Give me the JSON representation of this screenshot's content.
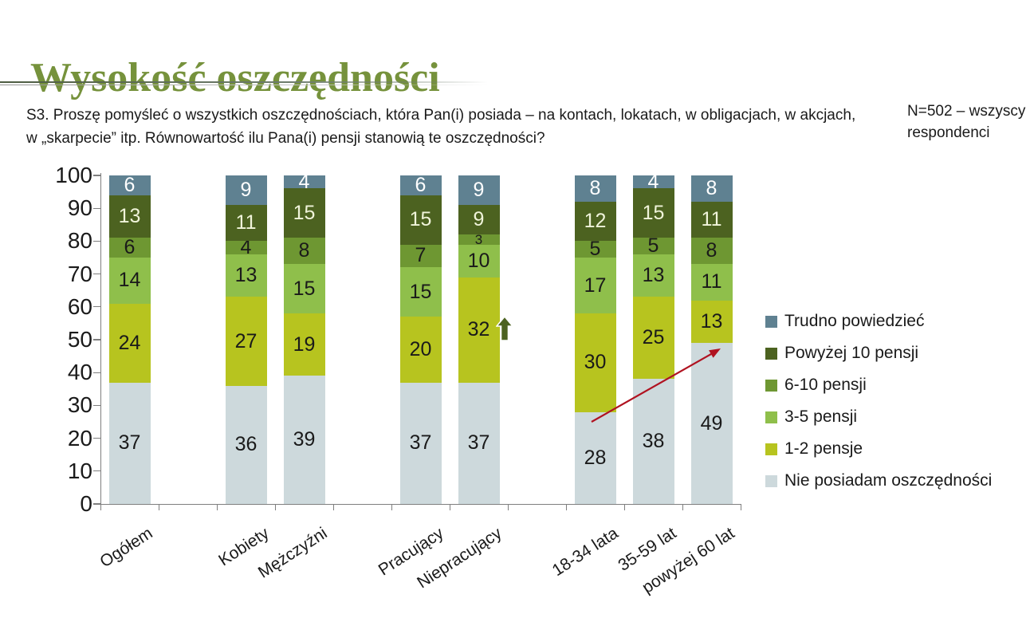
{
  "slide": {
    "title": "Wysokość oszczędności",
    "question_line1": "S3. Proszę pomyśleć o wszystkich oszczędnościach, która Pan(i) posiada – na kontach, lokatach, w obligacjach, w akcjach,",
    "question_line2": "w „skarpecie” itp. Równowartość ilu Pana(i) pensji stanowią te oszczędności?",
    "sample_note": "N=502 – wszyscy respondenci"
  },
  "chart_data": {
    "type": "bar",
    "stacked": true,
    "unit": "percent",
    "categories": [
      "Ogółem",
      "Kobiety",
      "Mężczyźni",
      "Pracujący",
      "Niepracujący",
      "18-34 lata",
      "35-59 lat",
      "powyżej 60 lat"
    ],
    "series": [
      {
        "name": "Nie posiadam oszczędności",
        "color": "#cdd9dc",
        "label_color": "#1a1a1a",
        "values": [
          37,
          36,
          39,
          37,
          37,
          28,
          38,
          49
        ]
      },
      {
        "name": "1-2 pensje",
        "color": "#b7c41f",
        "label_color": "#1a1a1a",
        "values": [
          24,
          27,
          19,
          20,
          32,
          30,
          25,
          13
        ]
      },
      {
        "name": "3-5 pensji",
        "color": "#8fbf4b",
        "label_color": "#1a1a1a",
        "values": [
          14,
          13,
          15,
          15,
          10,
          17,
          13,
          11
        ]
      },
      {
        "name": "6-10 pensji",
        "color": "#6e9732",
        "label_color": "#1a1a1a",
        "values": [
          6,
          4,
          8,
          7,
          3,
          5,
          5,
          8
        ]
      },
      {
        "name": "Powyżej 10 pensji",
        "color": "#4c6220",
        "label_color": "#f0f4da",
        "values": [
          13,
          11,
          15,
          15,
          9,
          12,
          15,
          11
        ]
      },
      {
        "name": "Trudno powiedzieć",
        "color": "#5f8191",
        "label_color": "#ffffff",
        "values": [
          6,
          9,
          4,
          6,
          9,
          8,
          4,
          8
        ]
      }
    ],
    "ylim": [
      0,
      100
    ],
    "yticks": [
      0,
      10,
      20,
      30,
      40,
      50,
      60,
      70,
      80,
      90,
      100
    ],
    "grid": false,
    "legend_position": "right",
    "annotations": [
      {
        "type": "block-up-arrow",
        "color": "#4c6220",
        "attached_to": "Niepracujący, segment 1-2 pensje, wartość 32"
      },
      {
        "type": "trend-arrow",
        "color": "#b01220",
        "from_category": "18-34 lata (28)",
        "to_category": "powyżej 60 lat (49)"
      }
    ]
  }
}
